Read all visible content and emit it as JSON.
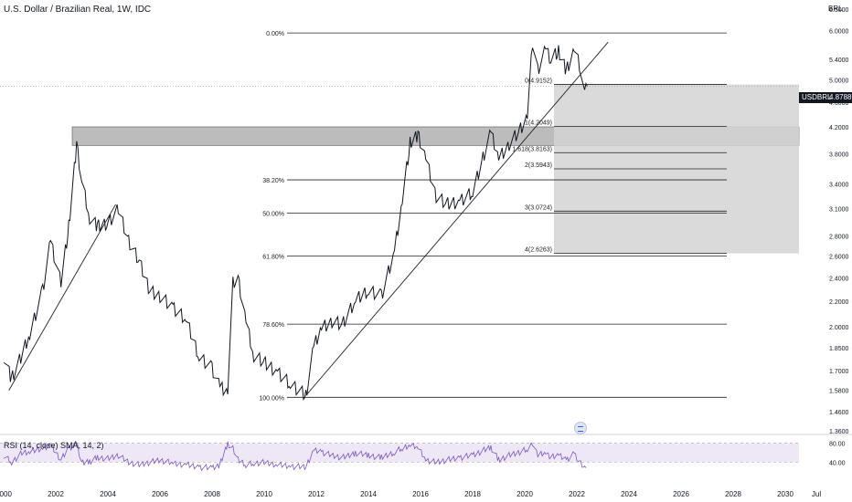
{
  "header": {
    "title": "U.S. Dollar / Brazilian Real, 1W, IDC",
    "currency": "BRL"
  },
  "ticker": {
    "symbol": "USDBRL",
    "price": "4.8788"
  },
  "rsi": {
    "label": "RSI (14, close) SMA, 14, 2)",
    "levels": [
      "80.00",
      "40.00"
    ],
    "colors": {
      "line": "#7e57c2",
      "band": "#ede7f6"
    }
  },
  "icons": {
    "logo": "tradingview-logo-icon"
  },
  "colors": {
    "zone": "#bcbcbc",
    "price_line": "#131722",
    "target_box": "#d3d3d3"
  },
  "chart_data": {
    "type": "line",
    "title": "U.S. Dollar / Brazilian Real, 1W, IDC",
    "y_scale": "log",
    "ylim": [
      1.36,
      6.5
    ],
    "xlim": [
      2000,
      2032
    ],
    "x_ticks": [
      "2000",
      "2002",
      "2004",
      "2006",
      "2008",
      "2010",
      "2012",
      "2014",
      "2016",
      "2018",
      "2020",
      "2022",
      "2024",
      "2026",
      "2028",
      "2030",
      "Jul"
    ],
    "y_ticks": [
      "6.5000",
      "6.0000",
      "5.4000",
      "5.0000",
      "4.6000",
      "4.2000",
      "3.8000",
      "3.4000",
      "3.1000",
      "2.8000",
      "2.6000",
      "2.4000",
      "2.2000",
      "2.0000",
      "1.8500",
      "1.7000",
      "1.5800",
      "1.4600",
      "1.3600"
    ],
    "series": [
      {
        "x": [
          2000.0,
          2000.3,
          2000.7,
          2001.0,
          2001.5,
          2001.8,
          2002.2,
          2002.5,
          2002.8,
          2003.0,
          2003.3,
          2003.6,
          2004.0,
          2004.4,
          2004.8,
          2005.2,
          2005.6,
          2006.0,
          2006.5,
          2007.0,
          2007.5,
          2008.0,
          2008.3,
          2008.6,
          2008.8,
          2009.0,
          2009.3,
          2009.6,
          2010.0,
          2010.5,
          2011.0,
          2011.6,
          2011.9,
          2012.2,
          2012.6,
          2013.0,
          2013.5,
          2014.0,
          2014.5,
          2015.0,
          2015.3,
          2015.6,
          2015.9,
          2016.2,
          2016.6,
          2017.0,
          2017.5,
          2018.0,
          2018.4,
          2018.7,
          2019.0,
          2019.4,
          2019.8,
          2020.1,
          2020.3,
          2020.5,
          2020.8,
          2021.0,
          2021.3,
          2021.6,
          2021.9,
          2022.1,
          2022.3,
          2022.4
        ],
        "values": [
          1.8,
          1.65,
          1.8,
          1.95,
          2.3,
          2.75,
          2.35,
          2.9,
          3.95,
          3.45,
          3.0,
          2.9,
          2.95,
          3.1,
          2.75,
          2.55,
          2.3,
          2.25,
          2.15,
          2.05,
          1.8,
          1.72,
          1.6,
          1.58,
          2.35,
          2.4,
          2.05,
          1.8,
          1.75,
          1.7,
          1.62,
          1.55,
          1.85,
          2.0,
          2.05,
          2.02,
          2.2,
          2.3,
          2.25,
          2.65,
          3.2,
          3.95,
          4.1,
          3.75,
          3.25,
          3.15,
          3.2,
          3.3,
          3.75,
          4.1,
          3.75,
          3.95,
          4.15,
          4.35,
          5.75,
          5.2,
          5.6,
          5.4,
          5.55,
          5.2,
          5.6,
          5.3,
          4.75,
          4.88
        ]
      }
    ],
    "rsi_values": [
      55,
      40,
      60,
      62,
      70,
      78,
      45,
      70,
      80,
      38,
      42,
      50,
      48,
      55,
      40,
      35,
      40,
      45,
      38,
      35,
      30,
      28,
      35,
      80,
      70,
      45,
      35,
      38,
      40,
      35,
      32,
      30,
      65,
      62,
      55,
      50,
      60,
      55,
      50,
      62,
      70,
      78,
      72,
      45,
      40,
      45,
      50,
      55,
      65,
      72,
      45,
      55,
      62,
      68,
      80,
      55,
      60,
      52,
      55,
      45,
      58,
      40,
      28,
      42
    ],
    "fib_levels": [
      {
        "label": "0.00%",
        "value": 5.95
      },
      {
        "label": "38.20%",
        "value": 3.45
      },
      {
        "label": "50.00%",
        "value": 3.05
      },
      {
        "label": "61.80%",
        "value": 2.6
      },
      {
        "label": "78.60%",
        "value": 2.02
      },
      {
        "label": "100.00%",
        "value": 1.54
      }
    ],
    "fib_extensions": [
      {
        "label": "0(4.9152)",
        "value": 4.9152
      },
      {
        "label": "1(4.2049)",
        "value": 4.2049
      },
      {
        "label": "1.618(3.8163)",
        "value": 3.8163
      },
      {
        "label": "2(3.5943)",
        "value": 3.5943
      },
      {
        "label": "3(3.0724)",
        "value": 3.0724
      },
      {
        "label": "4(2.6263)",
        "value": 2.6263
      }
    ],
    "zone": {
      "top": 4.2,
      "bottom": 3.92
    },
    "current_price": 4.8788,
    "trendlines": [
      {
        "x": [
          2000.2,
          2004.3
        ],
        "y": [
          1.58,
          3.15
        ]
      },
      {
        "x": [
          2011.6,
          2023.2
        ],
        "y": [
          1.55,
          5.75
        ]
      }
    ]
  }
}
